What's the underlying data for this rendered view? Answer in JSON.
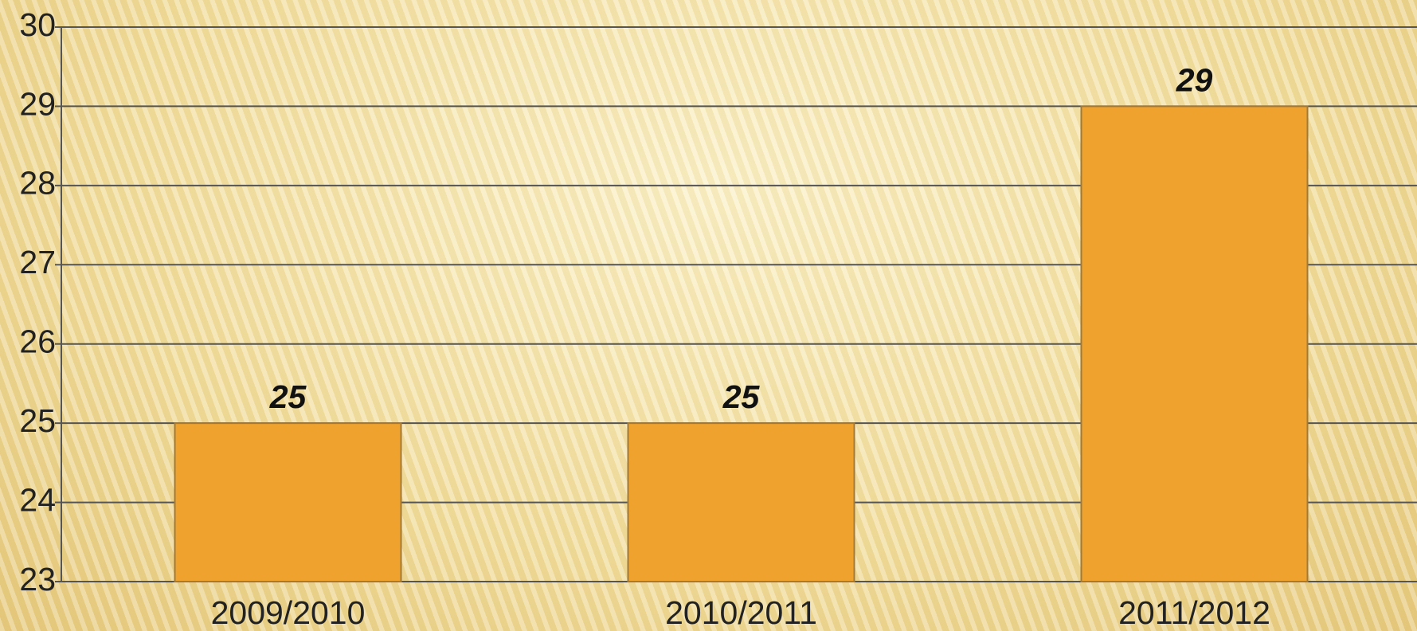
{
  "chart_data": {
    "type": "bar",
    "categories": [
      "2009/2010",
      "2010/2011",
      "2011/2012"
    ],
    "values": [
      25,
      25,
      29
    ],
    "color": "#f0a22e",
    "ylim": [
      23,
      30
    ],
    "yticks": [
      23,
      24,
      25,
      26,
      27,
      28,
      29,
      30
    ],
    "grid": true
  }
}
